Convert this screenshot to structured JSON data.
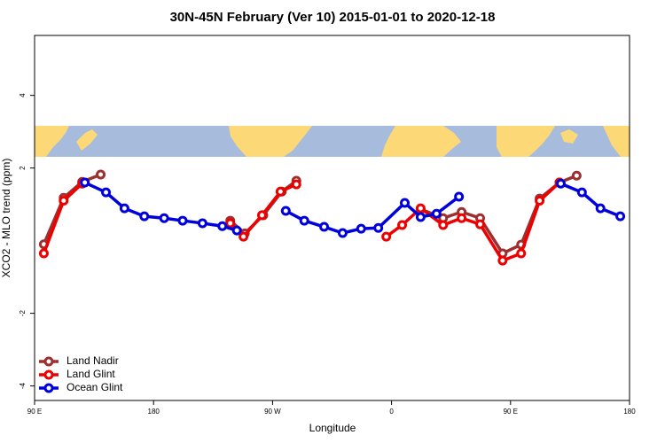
{
  "chart_data": {
    "type": "line",
    "title": "30N-45N February (Ver 10)   2015-01-01 to 2020-12-18",
    "xlabel": "Longitude",
    "ylabel": "XCO2 - MLO trend (ppm)",
    "xlim": [
      90,
      540
    ],
    "ylim": [
      -4.4,
      5.65
    ],
    "xticks": [
      {
        "value": 90,
        "label": "90 E"
      },
      180,
      {
        "value": 270,
        "label": "90 W"
      },
      {
        "value": 360,
        "label": "0"
      },
      {
        "value": 450,
        "label": "90 E"
      },
      {
        "value": 540,
        "label": "180"
      }
    ],
    "yticks": [
      -4,
      -2,
      2,
      4
    ],
    "legend": "bottom-left",
    "series": [
      {
        "name": "Land Nadir",
        "color": "#9c2f2f",
        "x": [
          97,
          112,
          126,
          140,
          190,
          238,
          249,
          263,
          277,
          288,
          335,
          382,
          399,
          413,
          427,
          444,
          458,
          472,
          487,
          500
        ],
        "values": [
          -0.1,
          1.18,
          1.62,
          1.82,
          null,
          0.55,
          0.2,
          0.7,
          1.35,
          1.65,
          null,
          0.87,
          0.62,
          0.79,
          0.62,
          -0.35,
          -0.11,
          1.16,
          1.6,
          1.79
        ]
      },
      {
        "name": "Land Glint",
        "color": "#ee0000",
        "x": [
          97,
          112,
          126,
          180,
          238,
          248,
          262,
          276,
          288,
          320,
          356,
          368,
          382,
          399,
          413,
          427,
          444,
          458,
          472,
          487
        ],
        "values": [
          -0.35,
          1.1,
          1.57,
          null,
          0.48,
          0.11,
          0.7,
          1.35,
          1.55,
          null,
          0.11,
          0.43,
          0.89,
          0.43,
          0.62,
          0.45,
          -0.55,
          -0.35,
          1.1,
          1.6
        ]
      },
      {
        "name": "Ocean Glint",
        "color": "#0000dd",
        "x": [
          128,
          144,
          158,
          173,
          188,
          202,
          217,
          232,
          243,
          260,
          280,
          294,
          309,
          323,
          337,
          350,
          370,
          382,
          394,
          411,
          450,
          488,
          504,
          518,
          533
        ],
        "values": [
          1.6,
          1.33,
          0.89,
          0.67,
          0.62,
          0.55,
          0.48,
          0.4,
          0.28,
          null,
          0.82,
          0.55,
          0.38,
          0.21,
          0.33,
          0.35,
          1.04,
          0.65,
          0.74,
          1.21,
          null,
          1.57,
          1.33,
          0.89,
          0.67
        ]
      }
    ]
  }
}
